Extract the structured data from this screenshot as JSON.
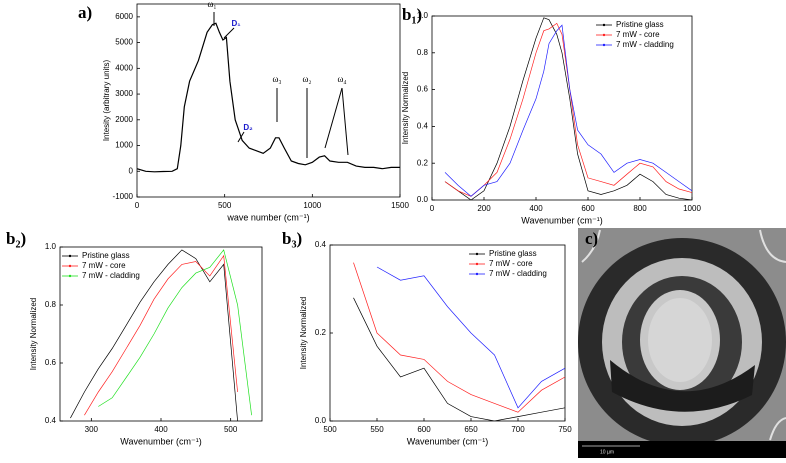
{
  "chart_data": [
    {
      "type": "line",
      "label": "a)",
      "xlabel": "wave number (cm⁻¹)",
      "ylabel": "Intesity (arbitrary units)",
      "x": [
        0,
        50,
        100,
        150,
        200,
        230,
        250,
        270,
        300,
        350,
        400,
        430,
        450,
        470,
        490,
        510,
        530,
        560,
        600,
        640,
        680,
        720,
        760,
        790,
        810,
        840,
        880,
        920,
        960,
        1000,
        1040,
        1070,
        1100,
        1150,
        1200,
        1250,
        1300,
        1350,
        1400,
        1450,
        1500
      ],
      "values": [
        100,
        0,
        -20,
        -10,
        0,
        100,
        1000,
        2500,
        3500,
        4300,
        5400,
        5700,
        5750,
        5400,
        5100,
        5200,
        3500,
        2000,
        1200,
        900,
        800,
        700,
        900,
        1300,
        1300,
        900,
        400,
        300,
        250,
        350,
        550,
        600,
        400,
        350,
        350,
        200,
        150,
        150,
        100,
        150,
        150
      ],
      "color": "#000000",
      "xlim": [
        0,
        1500
      ],
      "xticks": [
        0,
        500,
        1000,
        1500
      ],
      "ylim": [
        -1000,
        6500
      ],
      "yticks": [
        -1000,
        0,
        1000,
        2000,
        3000,
        4000,
        5000,
        6000
      ],
      "annotations": [
        "ω₁",
        "D₁",
        "ω₃",
        "ω₂",
        "D₂",
        "ω₄"
      ]
    },
    {
      "type": "line",
      "label": "b₁)",
      "xlabel": "Wavenumber (cm⁻¹)",
      "ylabel": "Intensity Normalized",
      "legend": "upper right",
      "x": [
        50,
        100,
        150,
        200,
        250,
        300,
        350,
        400,
        430,
        450,
        480,
        500,
        530,
        560,
        600,
        650,
        700,
        750,
        800,
        850,
        900,
        950,
        1000
      ],
      "series": [
        {
          "name": "Pristine glass",
          "color": "#000000",
          "values": [
            0.1,
            0.05,
            0.0,
            0.05,
            0.2,
            0.4,
            0.65,
            0.88,
            0.99,
            0.98,
            0.9,
            0.8,
            0.55,
            0.25,
            0.05,
            0.03,
            0.05,
            0.08,
            0.14,
            0.1,
            0.03,
            0.01,
            0.0
          ]
        },
        {
          "name": "7 mW - core",
          "color": "#ff2020",
          "values": [
            0.1,
            0.05,
            0.02,
            0.08,
            0.15,
            0.33,
            0.55,
            0.8,
            0.92,
            0.93,
            0.96,
            0.9,
            0.6,
            0.3,
            0.12,
            0.1,
            0.08,
            0.14,
            0.2,
            0.18,
            0.1,
            0.06,
            0.04
          ]
        },
        {
          "name": "7 mW - cladding",
          "color": "#2020ff",
          "values": [
            0.15,
            0.08,
            0.02,
            0.08,
            0.1,
            0.2,
            0.38,
            0.55,
            0.7,
            0.85,
            0.92,
            0.95,
            0.6,
            0.38,
            0.3,
            0.25,
            0.15,
            0.2,
            0.22,
            0.2,
            0.15,
            0.1,
            0.05
          ]
        }
      ],
      "xlim": [
        0,
        1000
      ],
      "xticks": [
        0,
        200,
        400,
        600,
        800,
        1000
      ],
      "ylim": [
        0,
        1
      ],
      "yticks": [
        {
          "value": 0,
          "label": "0.0"
        },
        0.2,
        0.4,
        0.6,
        0.8,
        {
          "value": 1,
          "label": "1.0"
        }
      ]
    },
    {
      "type": "line",
      "label": "b₂)",
      "xlabel": "Wavenumber (cm⁻¹)",
      "ylabel": "Intensity Normalized",
      "legend": "upper left",
      "x": [
        270,
        290,
        310,
        330,
        350,
        370,
        390,
        410,
        430,
        450,
        470,
        490,
        510,
        530
      ],
      "series": [
        {
          "name": "Pristine glass",
          "color": "#000000",
          "values": [
            0.41,
            0.5,
            0.58,
            0.65,
            0.73,
            0.81,
            0.88,
            0.94,
            0.99,
            0.96,
            0.88,
            0.94,
            0.4,
            null
          ]
        },
        {
          "name": "7 mW - core",
          "color": "#ff2020",
          "values": [
            null,
            0.42,
            0.5,
            0.57,
            0.65,
            0.73,
            0.82,
            0.89,
            0.94,
            0.95,
            0.9,
            0.97,
            0.5,
            null
          ]
        },
        {
          "name": "7 mW - cladding",
          "color": "#20e020",
          "values": [
            null,
            null,
            0.45,
            0.48,
            0.55,
            0.62,
            0.7,
            0.79,
            0.86,
            0.91,
            0.93,
            0.99,
            0.8,
            0.42
          ]
        }
      ],
      "xlim": [
        255,
        545
      ],
      "xticks": [
        300,
        400,
        500
      ],
      "ylim": [
        0.4,
        1
      ],
      "yticks": [
        0.4,
        0.6,
        0.8,
        {
          "value": 1,
          "label": "1.0"
        }
      ]
    },
    {
      "type": "line",
      "label": "b₃)",
      "xlabel": "Wavenumber (cm⁻¹)",
      "ylabel": "Intensity Normalized",
      "legend": "upper right",
      "x": [
        500,
        525,
        550,
        575,
        600,
        625,
        650,
        675,
        700,
        725,
        750
      ],
      "series": [
        {
          "name": "Pristine glass",
          "color": "#000000",
          "values": [
            null,
            0.28,
            0.17,
            0.1,
            0.12,
            0.04,
            0.01,
            0.0,
            0.01,
            0.02,
            0.03
          ]
        },
        {
          "name": "7 mW - core",
          "color": "#ff2020",
          "values": [
            null,
            0.36,
            0.2,
            0.15,
            0.14,
            0.09,
            0.06,
            0.04,
            0.02,
            0.07,
            0.1
          ]
        },
        {
          "name": "7 mW - cladding",
          "color": "#2020ff",
          "values": [
            null,
            null,
            0.35,
            0.32,
            0.33,
            0.26,
            0.2,
            0.15,
            0.03,
            0.09,
            0.12
          ]
        }
      ],
      "xlim": [
        500,
        750
      ],
      "xticks": [
        500,
        550,
        600,
        650,
        700,
        750
      ],
      "ylim": [
        0,
        0.4
      ],
      "yticks": [
        {
          "value": 0,
          "label": "0.0"
        },
        0.2,
        0.4
      ]
    },
    {
      "type": "image",
      "label": "c)",
      "scale_bar": "10 µm"
    }
  ]
}
